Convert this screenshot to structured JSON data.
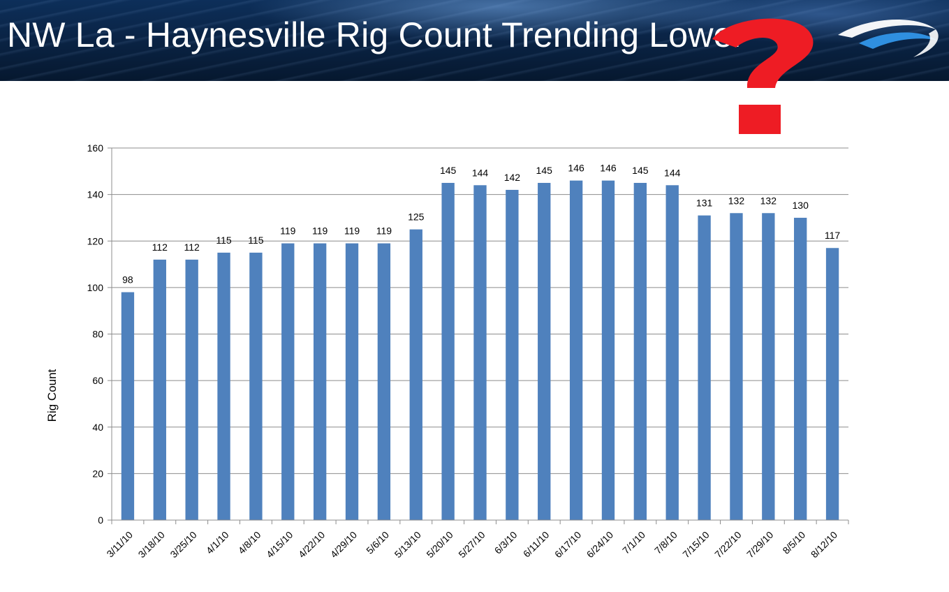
{
  "header": {
    "title": "NW La - Haynesville Rig Count Trending Lower"
  },
  "colors": {
    "bar": "#4f81bd",
    "question_mark": "#ee1c24",
    "banner": "#0a2446"
  },
  "icons": {
    "logo": "swoosh-logo-icon",
    "question": "question-mark-icon"
  },
  "chart_data": {
    "type": "bar",
    "title": "",
    "xlabel": "",
    "ylabel": "Rig Count",
    "ylim": [
      0,
      160
    ],
    "yticks": [
      0,
      20,
      40,
      60,
      80,
      100,
      120,
      140,
      160
    ],
    "grid": true,
    "legend": "none",
    "categories": [
      "3/11/10",
      "3/18/10",
      "3/25/10",
      "4/1/10",
      "4/8/10",
      "4/15/10",
      "4/22/10",
      "4/29/10",
      "5/6/10",
      "5/13/10",
      "5/20/10",
      "5/27/10",
      "6/3/10",
      "6/11/10",
      "6/17/10",
      "6/24/10",
      "7/1/10",
      "7/8/10",
      "7/15/10",
      "7/22/10",
      "7/29/10",
      "8/5/10",
      "8/12/10"
    ],
    "values": [
      98,
      112,
      112,
      115,
      115,
      119,
      119,
      119,
      119,
      125,
      145,
      144,
      142,
      145,
      146,
      146,
      145,
      144,
      131,
      132,
      132,
      130,
      117
    ]
  }
}
